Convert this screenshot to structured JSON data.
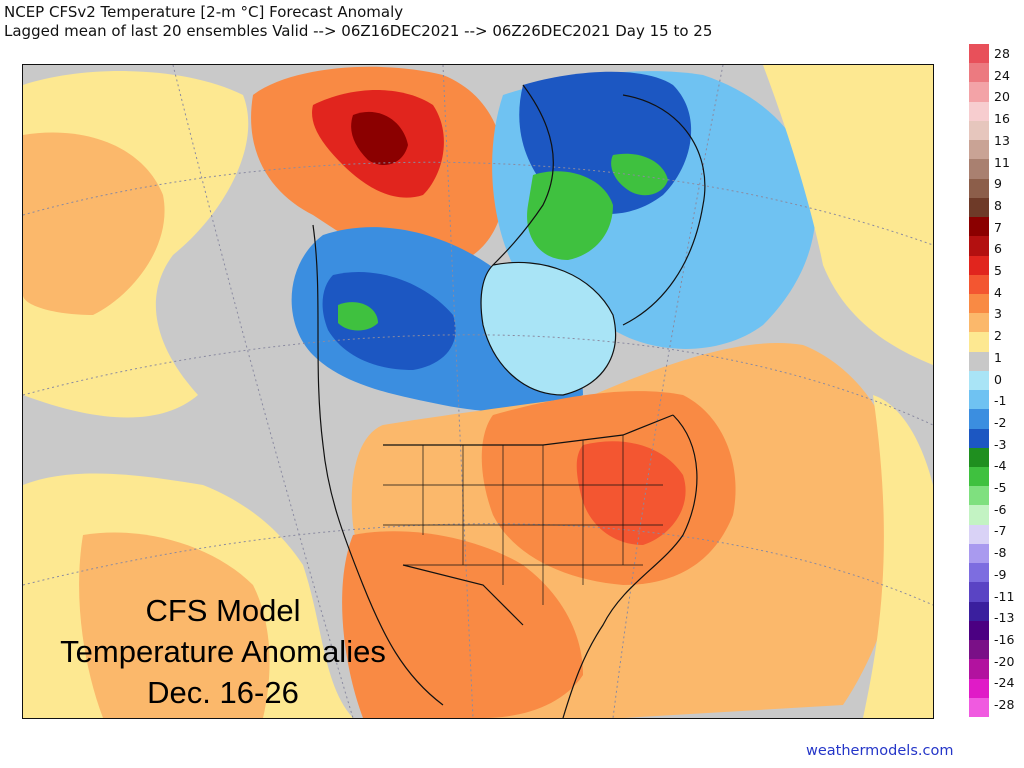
{
  "title": {
    "line1": "NCEP CFSv2 Temperature [2-m °C] Forecast Anomaly",
    "line2": "Lagged mean of last 20 ensembles Valid --> 06Z16DEC2021 --> 06Z26DEC2021  Day 15 to 25"
  },
  "overlay": {
    "line1": "CFS Model",
    "line2": "Temperature Anomalies",
    "line3": "Dec. 16-26"
  },
  "colorbar": {
    "labels": [
      "28",
      "24",
      "20",
      "16",
      "13",
      "11",
      "9",
      "8",
      "7",
      "6",
      "5",
      "4",
      "3",
      "2",
      "1",
      "0",
      "-1",
      "-2",
      "-3",
      "-4",
      "-5",
      "-6",
      "-7",
      "-8",
      "-9",
      "-11",
      "-13",
      "-16",
      "-20",
      "-24",
      "-28"
    ],
    "colors": [
      "#e8505a",
      "#ec7a80",
      "#f3a3a7",
      "#f7cdcf",
      "#e6c6bd",
      "#c9a395",
      "#a98070",
      "#8c5e4a",
      "#6e3a28",
      "#8b0000",
      "#b31010",
      "#e1251e",
      "#f35631",
      "#f98a44",
      "#fbb86b",
      "#fde891",
      "#c8c8c8",
      "#a9e4f6",
      "#6fc2f2",
      "#3b8ee0",
      "#1c57c2",
      "#1f8f1f",
      "#3fc13f",
      "#7fe07f",
      "#c3f3c3",
      "#d9d2f6",
      "#a99aef",
      "#7d6de0",
      "#5a44c4",
      "#3a1f9e",
      "#4b0082",
      "#7a1087",
      "#b2129f",
      "#e01bc7",
      "#f05ae0"
    ]
  },
  "credit": "weathermodels.com"
}
